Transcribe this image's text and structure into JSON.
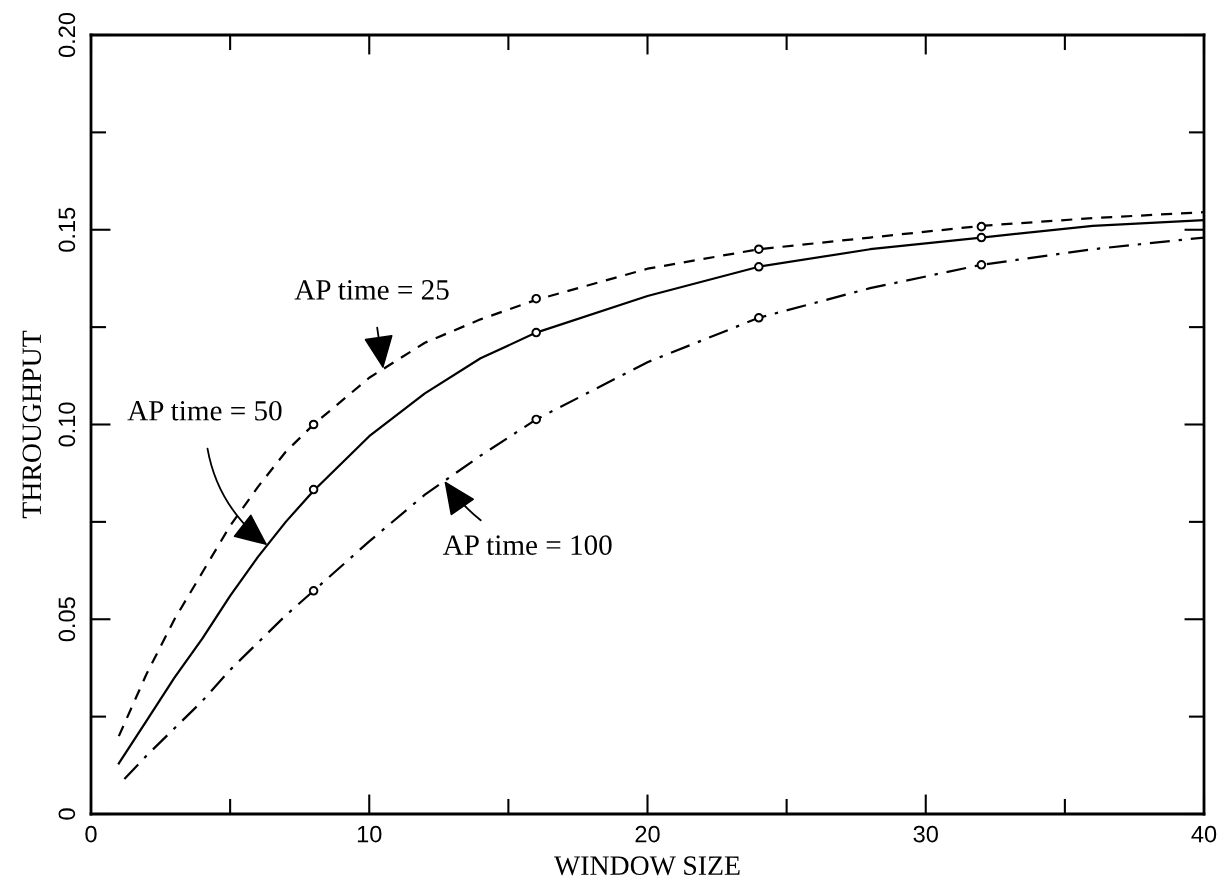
{
  "chart_data": {
    "type": "line",
    "xlabel": "WINDOW SIZE",
    "ylabel": "THROUGHPUT",
    "xlim": [
      0,
      40
    ],
    "ylim": [
      0,
      0.2
    ],
    "xticks": [
      0,
      {
        "value": 5,
        "label": null
      },
      10,
      {
        "value": 15,
        "label": null
      },
      20,
      {
        "value": 25,
        "label": null
      },
      30,
      {
        "value": 35,
        "label": null
      },
      40
    ],
    "yticks": [
      0,
      {
        "value": 0.025,
        "label": null
      },
      {
        "value": 0.05,
        "label": "0.05"
      },
      {
        "value": 0.075,
        "label": null
      },
      {
        "value": 0.1,
        "label": "0.10"
      },
      {
        "value": 0.125,
        "label": null
      },
      {
        "value": 0.15,
        "label": "0.15"
      },
      {
        "value": 0.175,
        "label": null
      },
      {
        "value": 0.2,
        "label": "0.20"
      }
    ],
    "grid": false,
    "legend": false,
    "series": [
      {
        "type": "line",
        "color": "#000000",
        "line_style": "dashed",
        "marker": "none",
        "x": [
          1,
          2,
          3,
          4,
          5,
          6,
          7,
          8,
          10,
          12,
          14,
          16,
          20,
          24,
          28,
          32,
          36,
          40
        ],
        "values": [
          0.02,
          0.036,
          0.05,
          0.062,
          0.074,
          0.084,
          0.093,
          0.1,
          0.112,
          0.121,
          0.127,
          0.132,
          0.14,
          0.145,
          0.148,
          0.151,
          0.153,
          0.1545
        ]
      },
      {
        "type": "line",
        "color": "#000000",
        "line_style": "solid",
        "marker": "none",
        "x": [
          1,
          2,
          3,
          4,
          5,
          6,
          7,
          8,
          10,
          12,
          14,
          16,
          20,
          24,
          28,
          32,
          36,
          40
        ],
        "values": [
          0.013,
          0.024,
          0.035,
          0.045,
          0.056,
          0.066,
          0.075,
          0.083,
          0.097,
          0.108,
          0.117,
          0.1236,
          0.133,
          0.1405,
          0.145,
          0.148,
          0.151,
          0.1525
        ]
      },
      {
        "type": "line",
        "color": "#000000",
        "line_style": "dashdot",
        "marker": "none",
        "x": [
          1.2,
          2,
          3,
          4,
          5,
          6,
          7,
          8,
          10,
          12,
          14,
          16,
          20,
          24,
          28,
          32,
          36,
          40
        ],
        "values": [
          0.009,
          0.015,
          0.022,
          0.029,
          0.037,
          0.044,
          0.051,
          0.0573,
          0.07,
          0.082,
          0.092,
          0.1013,
          0.116,
          0.1274,
          0.135,
          0.141,
          0.145,
          0.148
        ]
      },
      {
        "type": "scatter",
        "color": "#000000",
        "marker": "circle",
        "x": [
          8,
          16,
          24,
          32
        ],
        "values": [
          0.1,
          0.1323,
          0.145,
          0.1508
        ]
      },
      {
        "type": "scatter",
        "color": "#000000",
        "marker": "circle",
        "x": [
          8,
          16,
          24,
          32
        ],
        "values": [
          0.0833,
          0.1236,
          0.1405,
          0.148
        ]
      },
      {
        "type": "scatter",
        "color": "#000000",
        "marker": "circle",
        "x": [
          8,
          16,
          24,
          32
        ],
        "values": [
          0.0573,
          0.1013,
          0.1274,
          0.141
        ]
      }
    ],
    "annotations": [
      {
        "text": "AP time = 25",
        "x": 10.5,
        "y": 0.1143
      },
      {
        "text": "AP time = 50",
        "x": 6.34,
        "y": 0.069
      },
      {
        "text": "AP time = 100",
        "x": 12.7,
        "y": 0.0855
      }
    ]
  }
}
